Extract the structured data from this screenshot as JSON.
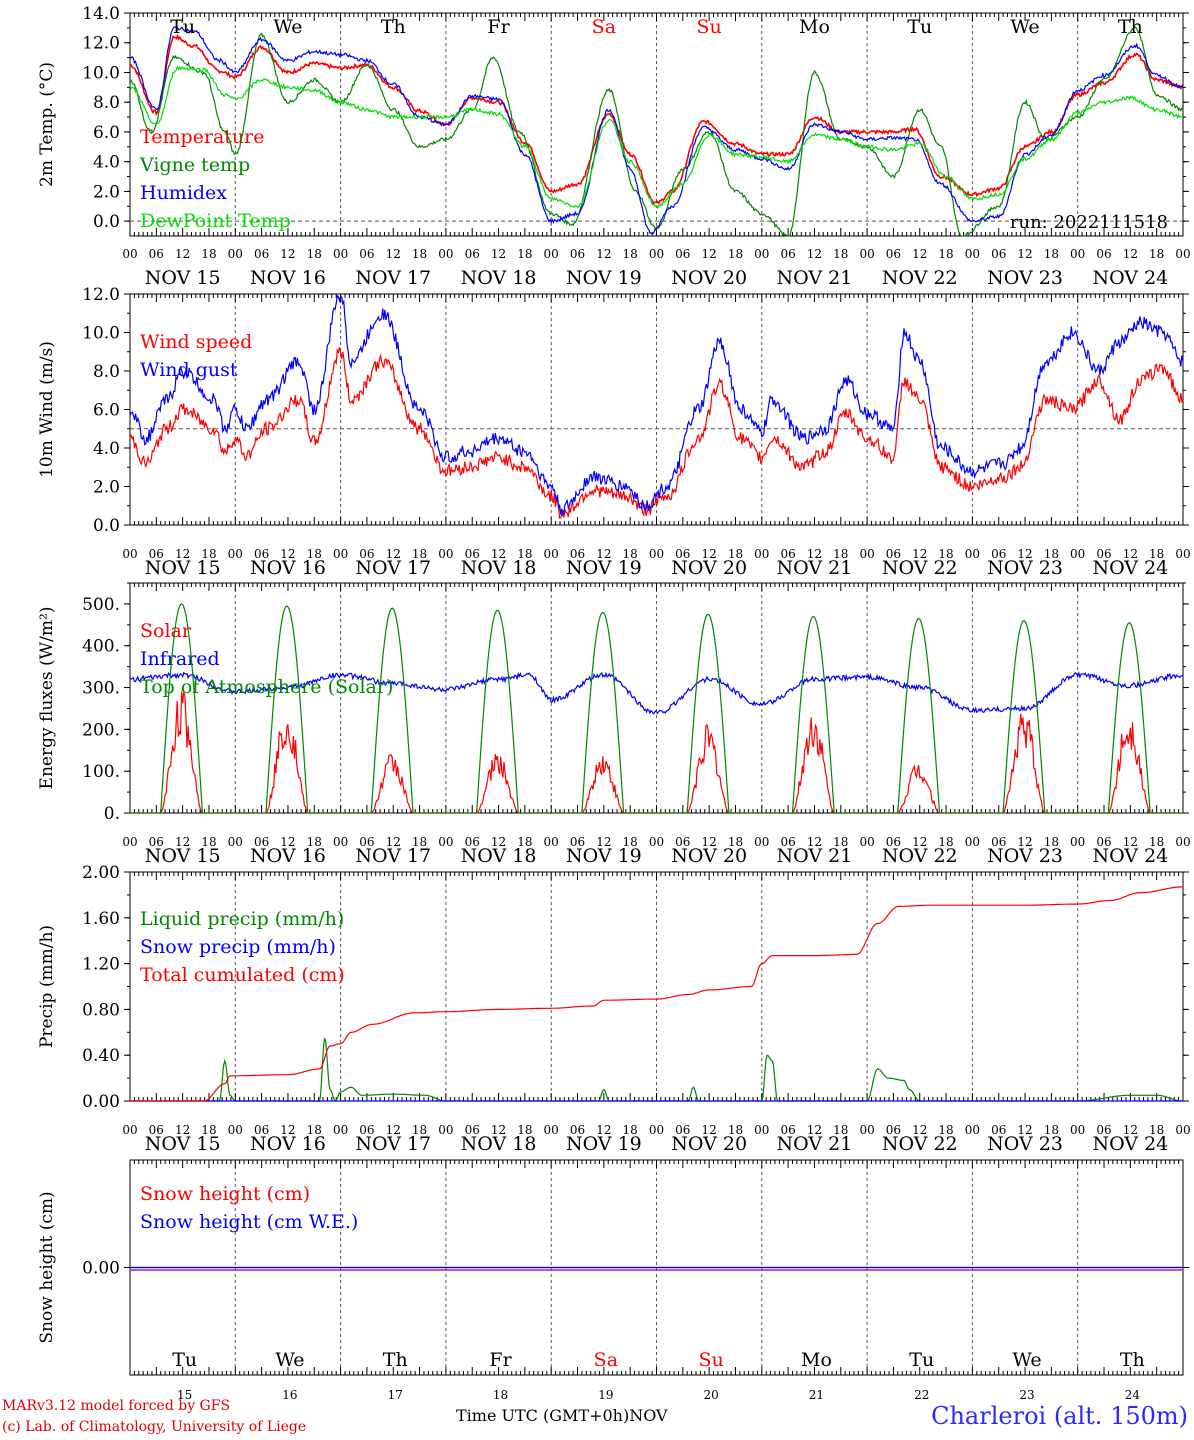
{
  "days": [
    "NOV 15",
    "NOV 16",
    "NOV 17",
    "NOV 18",
    "NOV 19",
    "NOV 20",
    "NOV 21",
    "NOV 22",
    "NOV 23",
    "NOV 24"
  ],
  "day_abbr": [
    "Tu",
    "We",
    "Th",
    "Fr",
    "Sa",
    "Su",
    "Mo",
    "Tu",
    "We",
    "Th"
  ],
  "weekend": [
    false,
    false,
    false,
    false,
    true,
    true,
    false,
    false,
    false,
    false
  ],
  "day_numbers": [
    "15",
    "16",
    "17",
    "18",
    "19",
    "20",
    "21",
    "22",
    "23",
    "24"
  ],
  "hour_ticks": [
    "00",
    "06",
    "12",
    "18"
  ],
  "run_label": "run: 2022111518",
  "footer": {
    "model": "MARv3.12 model forced by GFS",
    "lab": "(c) Lab. of Climatology, University of Liege",
    "axis_title": "Time UTC (GMT+0h)",
    "month": "NOV",
    "station": "Charleroi (alt. 150m)"
  },
  "colors": {
    "red": "#ff0000",
    "green": "#008800",
    "blue": "#0000ff",
    "light_green": "#00dd00",
    "purple": "#8a2be2",
    "weekend": "#ff0000"
  },
  "chart_data": [
    {
      "type": "line",
      "ylabel": "2m Temp. (°C)",
      "ylim": [
        -1,
        14
      ],
      "yticks": [
        "14.0",
        "12.0",
        "10.0",
        "8.0",
        "6.0",
        "4.0",
        "2.0",
        "0.0"
      ],
      "ytick_values": [
        14,
        12,
        10,
        8,
        6,
        4,
        2,
        0
      ],
      "reference_line": 0,
      "x_unit": "days since NOV 15 00 UTC",
      "series": [
        {
          "name": "Temperature",
          "color": "#ff0000",
          "x": [
            0,
            0.25,
            0.42,
            0.6,
            0.85,
            1.0,
            1.25,
            1.5,
            1.75,
            2.0,
            2.25,
            2.5,
            2.75,
            3.0,
            3.25,
            3.5,
            3.75,
            4.0,
            4.25,
            4.55,
            4.75,
            5.0,
            5.15,
            5.45,
            5.75,
            6.0,
            6.25,
            6.5,
            6.75,
            7.0,
            7.25,
            7.45,
            7.7,
            8.0,
            8.25,
            8.5,
            8.75,
            9.0,
            9.25,
            9.55,
            9.75,
            10.0
          ],
          "y": [
            10.5,
            7.3,
            12.4,
            11.8,
            10.1,
            9.7,
            11.7,
            10.0,
            10.6,
            10.3,
            10.5,
            9.0,
            7.4,
            6.5,
            8.3,
            8.0,
            5.3,
            2.0,
            2.5,
            7.2,
            4.5,
            1.2,
            2.0,
            6.7,
            5.2,
            4.5,
            4.5,
            7.0,
            6.0,
            6.0,
            6.0,
            6.2,
            3.0,
            1.8,
            2.2,
            5.0,
            6.0,
            8.5,
            9.3,
            11.2,
            9.5,
            9.0
          ]
        },
        {
          "name": "Vigne temp",
          "color": "#008800",
          "x": [
            0,
            0.2,
            0.42,
            0.7,
            0.9,
            1.0,
            1.25,
            1.5,
            1.75,
            2.0,
            2.25,
            2.5,
            2.75,
            3.0,
            3.25,
            3.45,
            3.7,
            4.0,
            4.2,
            4.55,
            4.8,
            5.0,
            5.25,
            5.5,
            5.75,
            6.0,
            6.25,
            6.5,
            6.75,
            7.0,
            7.25,
            7.5,
            7.7,
            7.9,
            8.25,
            8.5,
            8.7,
            9.0,
            9.25,
            9.55,
            9.75,
            10.0
          ],
          "y": [
            9.5,
            6.0,
            11.0,
            10.0,
            6.0,
            4.5,
            12.5,
            8.0,
            9.5,
            8.0,
            10.5,
            7.5,
            5.0,
            5.5,
            7.5,
            11.0,
            6.0,
            0.5,
            -0.2,
            8.8,
            2.0,
            -0.5,
            3.5,
            6.0,
            2.0,
            0.5,
            -1.0,
            10.0,
            5.5,
            5.0,
            3.0,
            7.5,
            5.0,
            -1.0,
            1.0,
            8.0,
            5.5,
            7.0,
            9.5,
            13.0,
            8.5,
            7.5
          ]
        },
        {
          "name": "Humidex",
          "color": "#0000ff",
          "x": [
            0,
            0.25,
            0.42,
            0.6,
            0.85,
            1.0,
            1.25,
            1.5,
            1.75,
            2.0,
            2.25,
            2.5,
            2.75,
            3.0,
            3.25,
            3.5,
            3.75,
            4.0,
            4.25,
            4.55,
            4.75,
            4.95,
            5.15,
            5.45,
            5.75,
            6.0,
            6.25,
            6.5,
            6.75,
            7.0,
            7.25,
            7.45,
            7.7,
            8.0,
            8.25,
            8.5,
            8.75,
            9.0,
            9.25,
            9.55,
            9.75,
            10.0
          ],
          "y": [
            11.0,
            7.5,
            13.0,
            12.8,
            10.8,
            10.0,
            12.2,
            10.8,
            11.4,
            11.2,
            10.8,
            9.2,
            7.0,
            6.5,
            8.4,
            8.2,
            4.5,
            0.0,
            0.5,
            7.5,
            3.5,
            -0.8,
            1.0,
            6.3,
            4.8,
            4.2,
            3.5,
            6.5,
            6.0,
            5.5,
            5.6,
            5.5,
            2.5,
            0.0,
            0.3,
            4.5,
            5.8,
            8.8,
            9.8,
            11.8,
            9.8,
            9.0
          ]
        },
        {
          "name": "DewPoint Temp",
          "color": "#00dd00",
          "x": [
            0,
            0.25,
            0.45,
            0.7,
            0.9,
            1.0,
            1.25,
            1.5,
            1.75,
            2.0,
            2.25,
            2.5,
            2.75,
            3.0,
            3.25,
            3.5,
            3.75,
            4.0,
            4.25,
            4.55,
            4.75,
            5.0,
            5.25,
            5.5,
            5.75,
            6.0,
            6.25,
            6.5,
            6.75,
            7.0,
            7.25,
            7.5,
            7.75,
            8.0,
            8.25,
            8.5,
            8.75,
            9.0,
            9.25,
            9.5,
            9.75,
            10.0
          ],
          "y": [
            9.0,
            6.5,
            10.3,
            10.2,
            8.5,
            8.2,
            9.5,
            9.0,
            8.8,
            8.0,
            7.5,
            7.0,
            7.0,
            7.0,
            7.5,
            7.2,
            5.0,
            1.5,
            1.0,
            6.8,
            4.0,
            1.0,
            2.5,
            5.8,
            4.5,
            4.3,
            4.0,
            5.8,
            5.5,
            5.0,
            4.8,
            5.2,
            3.0,
            1.5,
            1.8,
            4.2,
            5.5,
            7.3,
            8.0,
            8.3,
            7.5,
            7.0
          ]
        }
      ],
      "legend_position": "left"
    },
    {
      "type": "line",
      "ylabel": "10m Wind (m/s)",
      "ylim": [
        0,
        12
      ],
      "yticks": [
        "12.0",
        "10.0",
        "8.0",
        "6.0",
        "4.0",
        "2.0",
        "0.0"
      ],
      "ytick_values": [
        12,
        10,
        8,
        6,
        4,
        2,
        0
      ],
      "reference_line": 5,
      "series": [
        {
          "name": "Wind speed",
          "color": "#ff0000",
          "x": [
            0,
            0.15,
            0.35,
            0.5,
            0.8,
            0.9,
            1.0,
            1.1,
            1.3,
            1.6,
            1.75,
            2.0,
            2.1,
            2.4,
            2.75,
            3.0,
            3.2,
            3.5,
            3.75,
            4.0,
            4.1,
            4.4,
            4.7,
            4.9,
            5.1,
            5.4,
            5.6,
            5.8,
            6.0,
            6.1,
            6.4,
            6.6,
            6.8,
            7.0,
            7.25,
            7.35,
            7.5,
            7.7,
            8.0,
            8.3,
            8.45,
            8.7,
            8.95,
            9.2,
            9.4,
            9.6,
            9.8,
            10.0
          ],
          "y": [
            4.5,
            3.2,
            5.0,
            6.0,
            5.0,
            3.8,
            4.5,
            3.6,
            5.0,
            6.5,
            4.3,
            9.0,
            6.5,
            8.5,
            5.0,
            2.8,
            3.0,
            3.5,
            3.0,
            1.5,
            0.6,
            1.8,
            1.5,
            0.8,
            1.5,
            4.5,
            7.3,
            4.5,
            3.5,
            4.5,
            3.0,
            3.8,
            5.8,
            4.5,
            3.5,
            7.5,
            6.5,
            3.0,
            2.0,
            2.5,
            3.0,
            6.5,
            6.0,
            7.5,
            5.5,
            7.5,
            8.2,
            6.5
          ]
        },
        {
          "name": "Wind gust",
          "color": "#0000ff",
          "x": [
            0,
            0.15,
            0.35,
            0.5,
            0.8,
            0.9,
            1.0,
            1.1,
            1.3,
            1.6,
            1.75,
            2.0,
            2.1,
            2.4,
            2.75,
            3.0,
            3.2,
            3.5,
            3.75,
            4.0,
            4.1,
            4.4,
            4.7,
            4.9,
            5.1,
            5.4,
            5.6,
            5.8,
            6.0,
            6.1,
            6.4,
            6.6,
            6.8,
            7.0,
            7.25,
            7.35,
            7.5,
            7.7,
            8.0,
            8.3,
            8.45,
            8.7,
            8.95,
            9.2,
            9.4,
            9.6,
            9.8,
            10.0
          ],
          "y": [
            6.0,
            4.5,
            6.5,
            8.0,
            6.5,
            5.0,
            6.0,
            5.0,
            6.5,
            8.5,
            6.0,
            12.0,
            8.5,
            11.0,
            6.0,
            3.5,
            3.8,
            4.5,
            3.8,
            2.0,
            0.8,
            2.5,
            2.0,
            1.0,
            2.0,
            6.0,
            9.5,
            6.0,
            4.8,
            6.5,
            4.5,
            5.0,
            7.5,
            5.8,
            5.0,
            10.0,
            8.5,
            4.0,
            2.8,
            3.2,
            4.0,
            8.5,
            10.0,
            8.0,
            9.5,
            10.5,
            10.0,
            8.5
          ]
        }
      ],
      "legend_position": "left"
    },
    {
      "type": "line",
      "ylabel": "Energy fluxes (W/m²)",
      "ylim": [
        0,
        550
      ],
      "yticks": [
        "500.",
        "400.",
        "300.",
        "200.",
        "100.",
        "0."
      ],
      "ytick_values": [
        500,
        400,
        300,
        200,
        100,
        0
      ],
      "reference_line": null,
      "series": [
        {
          "name": "Solar",
          "color": "#ff0000",
          "kind": "diurnal",
          "peaks": [
            300,
            265,
            150,
            150,
            150,
            215,
            250,
            130,
            260,
            255
          ]
        },
        {
          "name": "Infrared",
          "color": "#0000ff",
          "x": [
            0,
            0.5,
            1.0,
            1.5,
            2.0,
            2.5,
            3.0,
            3.5,
            3.8,
            4.0,
            4.5,
            5.0,
            5.5,
            6.0,
            6.5,
            7.0,
            7.5,
            8.0,
            8.5,
            9.0,
            9.5,
            10.0
          ],
          "y": [
            320,
            330,
            290,
            300,
            330,
            310,
            295,
            320,
            330,
            270,
            330,
            240,
            320,
            260,
            320,
            325,
            300,
            245,
            250,
            330,
            305,
            330
          ]
        },
        {
          "name": "Top of Atmosphere (Solar)",
          "color": "#008800",
          "kind": "diurnal",
          "peaks": [
            500,
            495,
            490,
            485,
            480,
            475,
            470,
            465,
            460,
            455
          ]
        }
      ],
      "legend_position": "left"
    },
    {
      "type": "line",
      "ylabel": "Precip (mm/h)",
      "ylim": [
        0,
        2.0
      ],
      "yticks": [
        "2.00",
        "1.60",
        "1.20",
        "0.80",
        "0.40",
        "0.00"
      ],
      "ytick_values": [
        2.0,
        1.6,
        1.2,
        0.8,
        0.4,
        0.0
      ],
      "reference_line": null,
      "series": [
        {
          "name": "Liquid precip (mm/h)",
          "color": "#008800",
          "x": [
            0,
            0.6,
            0.85,
            0.9,
            0.95,
            1.0,
            1.8,
            1.85,
            1.9,
            1.95,
            2.0,
            2.1,
            2.2,
            2.5,
            2.8,
            3.0,
            4.45,
            4.5,
            4.55,
            5.3,
            5.35,
            5.4,
            6.0,
            6.05,
            6.1,
            6.15,
            7.0,
            7.1,
            7.2,
            7.35,
            7.4,
            7.5,
            9.0,
            9.5,
            9.75,
            10.0
          ],
          "y": [
            0,
            0,
            0,
            0.35,
            0.05,
            0,
            0,
            0.55,
            0.1,
            0,
            0.08,
            0.12,
            0.05,
            0.06,
            0.05,
            0,
            0,
            0.1,
            0,
            0,
            0.12,
            0,
            0,
            0.4,
            0.35,
            0,
            0,
            0.28,
            0.2,
            0.18,
            0.1,
            0,
            0,
            0.05,
            0.05,
            0
          ],
          "ylim_override": [
            0,
            2.0
          ]
        },
        {
          "name": "Snow precip (mm/h)",
          "color": "#0000ff",
          "x": [
            0,
            10
          ],
          "y": [
            0,
            0
          ]
        },
        {
          "name": "Total cumulated (cm)",
          "color": "#ff0000",
          "x": [
            0,
            0.7,
            0.9,
            0.95,
            1.5,
            1.8,
            1.9,
            2.0,
            2.1,
            2.3,
            2.7,
            3.0,
            3.5,
            4.0,
            4.4,
            4.5,
            5.0,
            5.3,
            5.5,
            5.9,
            6.0,
            6.1,
            6.5,
            6.9,
            7.1,
            7.3,
            7.6,
            8.5,
            9.0,
            9.3,
            9.6,
            10.0
          ],
          "y": [
            0,
            0,
            0.15,
            0.22,
            0.23,
            0.28,
            0.48,
            0.5,
            0.6,
            0.67,
            0.77,
            0.78,
            0.8,
            0.81,
            0.83,
            0.88,
            0.89,
            0.93,
            0.97,
            1.0,
            1.2,
            1.27,
            1.27,
            1.28,
            1.55,
            1.7,
            1.71,
            1.71,
            1.72,
            1.75,
            1.82,
            1.87
          ]
        }
      ],
      "legend_position": "left"
    },
    {
      "type": "line",
      "ylabel": "Snow height (cm)",
      "ylim": [
        -1,
        1
      ],
      "yticks": [
        "0.00"
      ],
      "ytick_values": [
        0
      ],
      "reference_line": null,
      "series": [
        {
          "name": "Snow height (cm)",
          "color": "#ff0000",
          "x": [
            0,
            10
          ],
          "y": [
            0,
            0
          ]
        },
        {
          "name": "Snow height (cm W.E.)",
          "color": "#0000ff",
          "x": [
            0,
            10
          ],
          "y": [
            0,
            0
          ]
        }
      ],
      "legend_position": "left"
    }
  ]
}
